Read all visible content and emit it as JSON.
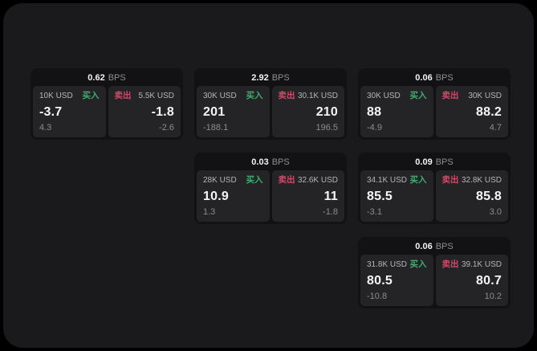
{
  "labels": {
    "bps": "BPS",
    "buy": "买入",
    "sell": "卖出"
  },
  "colors": {
    "background": "#000000",
    "surface": "#1a1a1c",
    "card": "#121214",
    "panel": "#242427",
    "buy": "#42ab6d",
    "sell": "#d04a68"
  },
  "cards": [
    {
      "bps": "0.62",
      "row": 1,
      "col": 1,
      "buy": {
        "size": "10K USD",
        "price": "-3.7",
        "delta": "4.3"
      },
      "sell": {
        "size": "5.5K USD",
        "price": "-1.8",
        "delta": "-2.6"
      }
    },
    {
      "bps": "2.92",
      "row": 1,
      "col": 2,
      "buy": {
        "size": "30K USD",
        "price": "201",
        "delta": "-188.1"
      },
      "sell": {
        "size": "30.1K USD",
        "price": "210",
        "delta": "196.5"
      }
    },
    {
      "bps": "0.06",
      "row": 1,
      "col": 3,
      "buy": {
        "size": "30K USD",
        "price": "88",
        "delta": "-4.9"
      },
      "sell": {
        "size": "30K USD",
        "price": "88.2",
        "delta": "4.7"
      }
    },
    {
      "bps": "0.03",
      "row": 2,
      "col": 2,
      "buy": {
        "size": "28K USD",
        "price": "10.9",
        "delta": "1.3"
      },
      "sell": {
        "size": "32.6K USD",
        "price": "11",
        "delta": "-1.8"
      }
    },
    {
      "bps": "0.09",
      "row": 2,
      "col": 3,
      "buy": {
        "size": "34.1K USD",
        "price": "85.5",
        "delta": "-3.1"
      },
      "sell": {
        "size": "32.8K USD",
        "price": "85.8",
        "delta": "3.0"
      }
    },
    {
      "bps": "0.06",
      "row": 3,
      "col": 3,
      "buy": {
        "size": "31.8K USD",
        "price": "80.5",
        "delta": "-10.8"
      },
      "sell": {
        "size": "39.1K USD",
        "price": "80.7",
        "delta": "10.2"
      }
    }
  ]
}
